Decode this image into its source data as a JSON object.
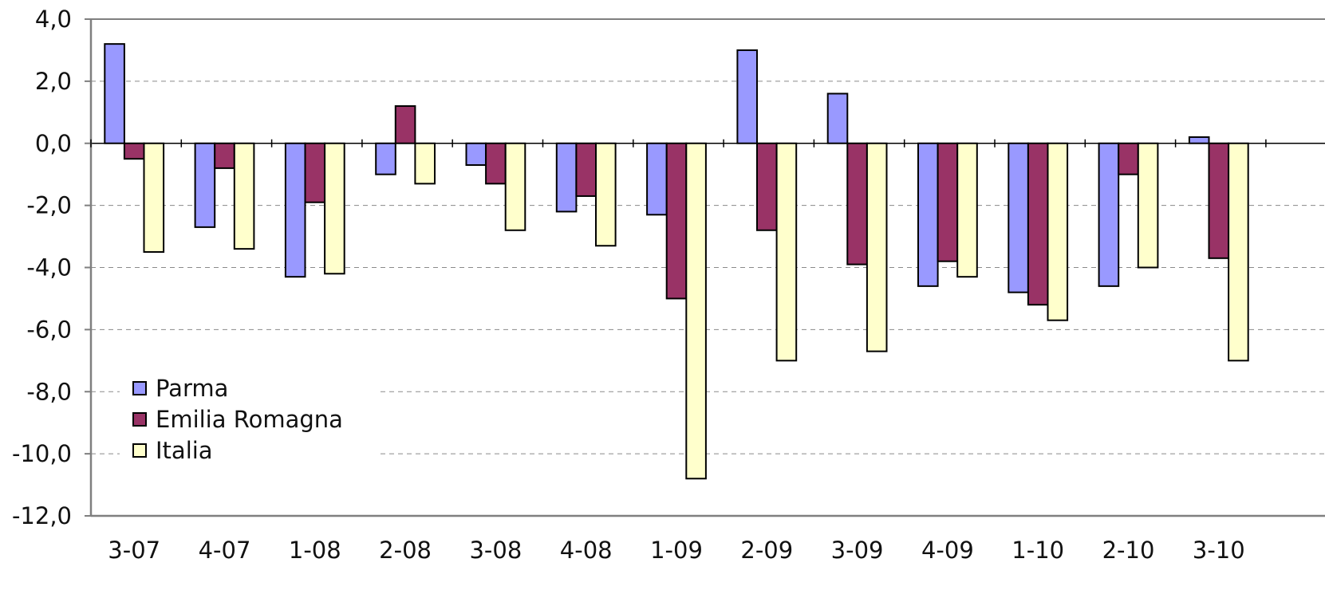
{
  "chart_data": {
    "type": "bar",
    "title": "",
    "xlabel": "",
    "ylabel": "",
    "categories": [
      "3-07",
      "4-07",
      "1-08",
      "2-08",
      "3-08",
      "4-08",
      "1-09",
      "2-09",
      "3-09",
      "4-09",
      "1-10",
      "2-10",
      "3-10"
    ],
    "ylim": [
      -12,
      4
    ],
    "yticks": [
      4,
      2,
      0,
      -2,
      -4,
      -6,
      -8,
      -10,
      -12
    ],
    "ytick_labels": [
      "4,0",
      "2,0",
      "0,0",
      "-2,0",
      "-4,0",
      "-6,0",
      "-8,0",
      "-10,0",
      "-12,0"
    ],
    "grid": "horizontal dashed",
    "legend_position": "bottom-left",
    "series": [
      {
        "name": "Parma",
        "color": "#9999ff",
        "values": [
          3.2,
          -2.7,
          -4.3,
          -1.0,
          -0.7,
          -2.2,
          -2.3,
          3.0,
          1.6,
          -4.6,
          -4.8,
          -4.6,
          0.2
        ]
      },
      {
        "name": "Emilia Romagna",
        "color": "#993366",
        "values": [
          -0.5,
          -0.8,
          -1.9,
          1.2,
          -1.3,
          -1.7,
          -5.0,
          -2.8,
          -3.9,
          -3.8,
          -5.2,
          -1.0,
          -3.7
        ]
      },
      {
        "name": "Italia",
        "color": "#ffffcc",
        "values": [
          -3.5,
          -3.4,
          -4.2,
          -1.3,
          -2.8,
          -3.3,
          -10.8,
          -7.0,
          -6.7,
          -4.3,
          -5.7,
          -4.0,
          -7.0
        ]
      }
    ]
  }
}
